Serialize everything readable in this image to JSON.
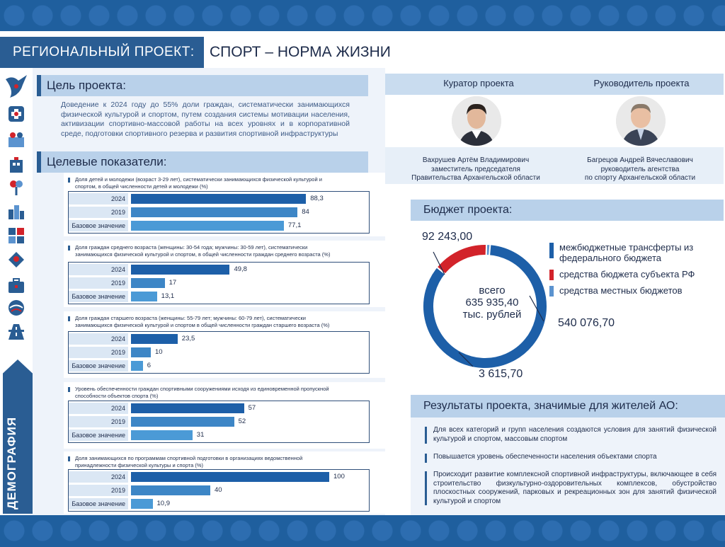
{
  "header": {
    "section_label": "РЕГИОНАЛЬНЫЙ ПРОЕКТ:",
    "project_name": "СПОРТ – НОРМА ЖИЗНИ"
  },
  "sidebar": {
    "category": "ДЕМОГРАФИЯ",
    "icons": [
      "bird-icon",
      "health-cross-icon",
      "people-icon",
      "building-icon",
      "flower-icon",
      "city-icon",
      "grid-icon",
      "hand-heart-icon",
      "briefcase-icon",
      "globe-icon",
      "road-icon"
    ]
  },
  "goal": {
    "heading": "Цель проекта:",
    "text": "Доведение к 2024 году до 55% доли граждан, систематически занимающихся физической культурой и спортом, путем создания системы мотивации населения, активизации спортивно-массовой работы на всех уровнях и в корпоративной среде, подготовки спортивного резерва и развития спортивной инфраструктуры"
  },
  "indicators": {
    "heading": "Целевые показатели:",
    "row_labels": [
      "2024",
      "2019",
      "Базовое значение"
    ],
    "items": [
      {
        "title": "Доля детей и молодежи (возраст 3-29 лет), систематически занимающихся физической культурой и спортом, в общей численности детей и молодежи (%)",
        "values": [
          "88,3",
          "84",
          "77,1"
        ]
      },
      {
        "title": "Доля граждан среднего возраста (женщины: 30-54 года; мужчины: 30-59 лет), систематически занимающихся физической культурой и спортом, в общей численности граждан среднего возраста (%)",
        "values": [
          "49,8",
          "17",
          "13,1"
        ]
      },
      {
        "title": "Доля граждан старшего возраста (женщины: 55-79 лет; мужчины: 60-79 лет), систематически занимающихся физической культурой и спортом в общей численности граждан старшего возраста (%)",
        "values": [
          "23,5",
          "10",
          "6"
        ]
      },
      {
        "title": "Уровень обеспеченности граждан спортивными сооружениями исходя из единовременной пропускной способности объектов спорта (%)",
        "values": [
          "57",
          "52",
          "31"
        ]
      },
      {
        "title": "Доля занимающихся по программам спортивной подготовки в организациях ведомственной принадлежности физической культуры и спорта (%)",
        "values": [
          "100",
          "40",
          "10,9"
        ]
      }
    ]
  },
  "chart_data": [
    {
      "type": "bar",
      "title": "Доля детей и молодежи (возраст 3-29 лет), систематически занимающихся физической культурой и спортом, в общей численности детей и молодежи (%)",
      "categories": [
        "2024",
        "2019",
        "Базовое значение"
      ],
      "values": [
        88.3,
        84,
        77.1
      ],
      "xlim": [
        0,
        100
      ]
    },
    {
      "type": "bar",
      "title": "Доля граждан среднего возраста (%)",
      "categories": [
        "2024",
        "2019",
        "Базовое значение"
      ],
      "values": [
        49.8,
        17,
        13.1
      ],
      "xlim": [
        0,
        100
      ]
    },
    {
      "type": "bar",
      "title": "Доля граждан старшего возраста (%)",
      "categories": [
        "2024",
        "2019",
        "Базовое значение"
      ],
      "values": [
        23.5,
        10,
        6
      ],
      "xlim": [
        0,
        100
      ]
    },
    {
      "type": "bar",
      "title": "Уровень обеспеченности граждан спортивными сооружениями (%)",
      "categories": [
        "2024",
        "2019",
        "Базовое значение"
      ],
      "values": [
        57,
        52,
        31
      ],
      "xlim": [
        0,
        100
      ]
    },
    {
      "type": "bar",
      "title": "Доля занимающихся по программам спортивной подготовки (%)",
      "categories": [
        "2024",
        "2019",
        "Базовое значение"
      ],
      "values": [
        100,
        40,
        10.9
      ],
      "xlim": [
        0,
        100
      ]
    },
    {
      "type": "pie",
      "title": "Бюджет проекта:",
      "center_label": [
        "всего",
        "635 935,40",
        "тыс. рублей"
      ],
      "categories": [
        "межбюджетные трансферты из федерального бюджета",
        "средства бюджета субъекта РФ",
        "средства местных бюджетов"
      ],
      "values": [
        540076.7,
        92243.0,
        3615.7
      ],
      "value_labels": [
        "540 076,70",
        "92 243,00",
        "3 615,70"
      ]
    }
  ],
  "people": {
    "curator": {
      "role": "Куратор проекта",
      "name": "Вахрушев Артём Владимирович",
      "position1": "заместитель председателя",
      "position2": "Правительства Архангельской области"
    },
    "leader": {
      "role": "Руководитель проекта",
      "name": "Багрецов Андрей Вячеславович",
      "position1": "руководитель агентства",
      "position2": "по спорту Архангельской области"
    }
  },
  "budget": {
    "heading": "Бюджет проекта:",
    "total_word": "всего",
    "total": "635 935,40",
    "unit": "тыс. рублей",
    "federal_label": "межбюджетные трансферты из федерального бюджета",
    "regional_label": "средства бюджета субъекта РФ",
    "local_label": "средства местных бюджетов",
    "federal_value": "540 076,70",
    "regional_value": "92 243,00",
    "local_value": "3 615,70",
    "colors": {
      "federal": "#1d5fa8",
      "regional": "#d2232a",
      "local": "#5b93cf"
    }
  },
  "results": {
    "heading": "Результаты проекта, значимые для  жителей АО:",
    "items": [
      "Для всех категорий и групп населения создаются условия для занятий физической культурой и спортом, массовым спортом",
      "Повышается уровень обеспеченности населения объектами спорта",
      "Происходит развитие комплексной спортивной инфраструктуры, включающее в себя строительство физкультурно-оздоровительных комплексов, обустройство плоскостных сооружений, парковых и рекреационных зон для занятий физической культурой и спортом"
    ]
  },
  "colors": {
    "bar_2024": "#1d5fa8",
    "bar_2019": "#3d86c6",
    "bar_base": "#4b9ad6",
    "accent": "#2a5d93"
  }
}
